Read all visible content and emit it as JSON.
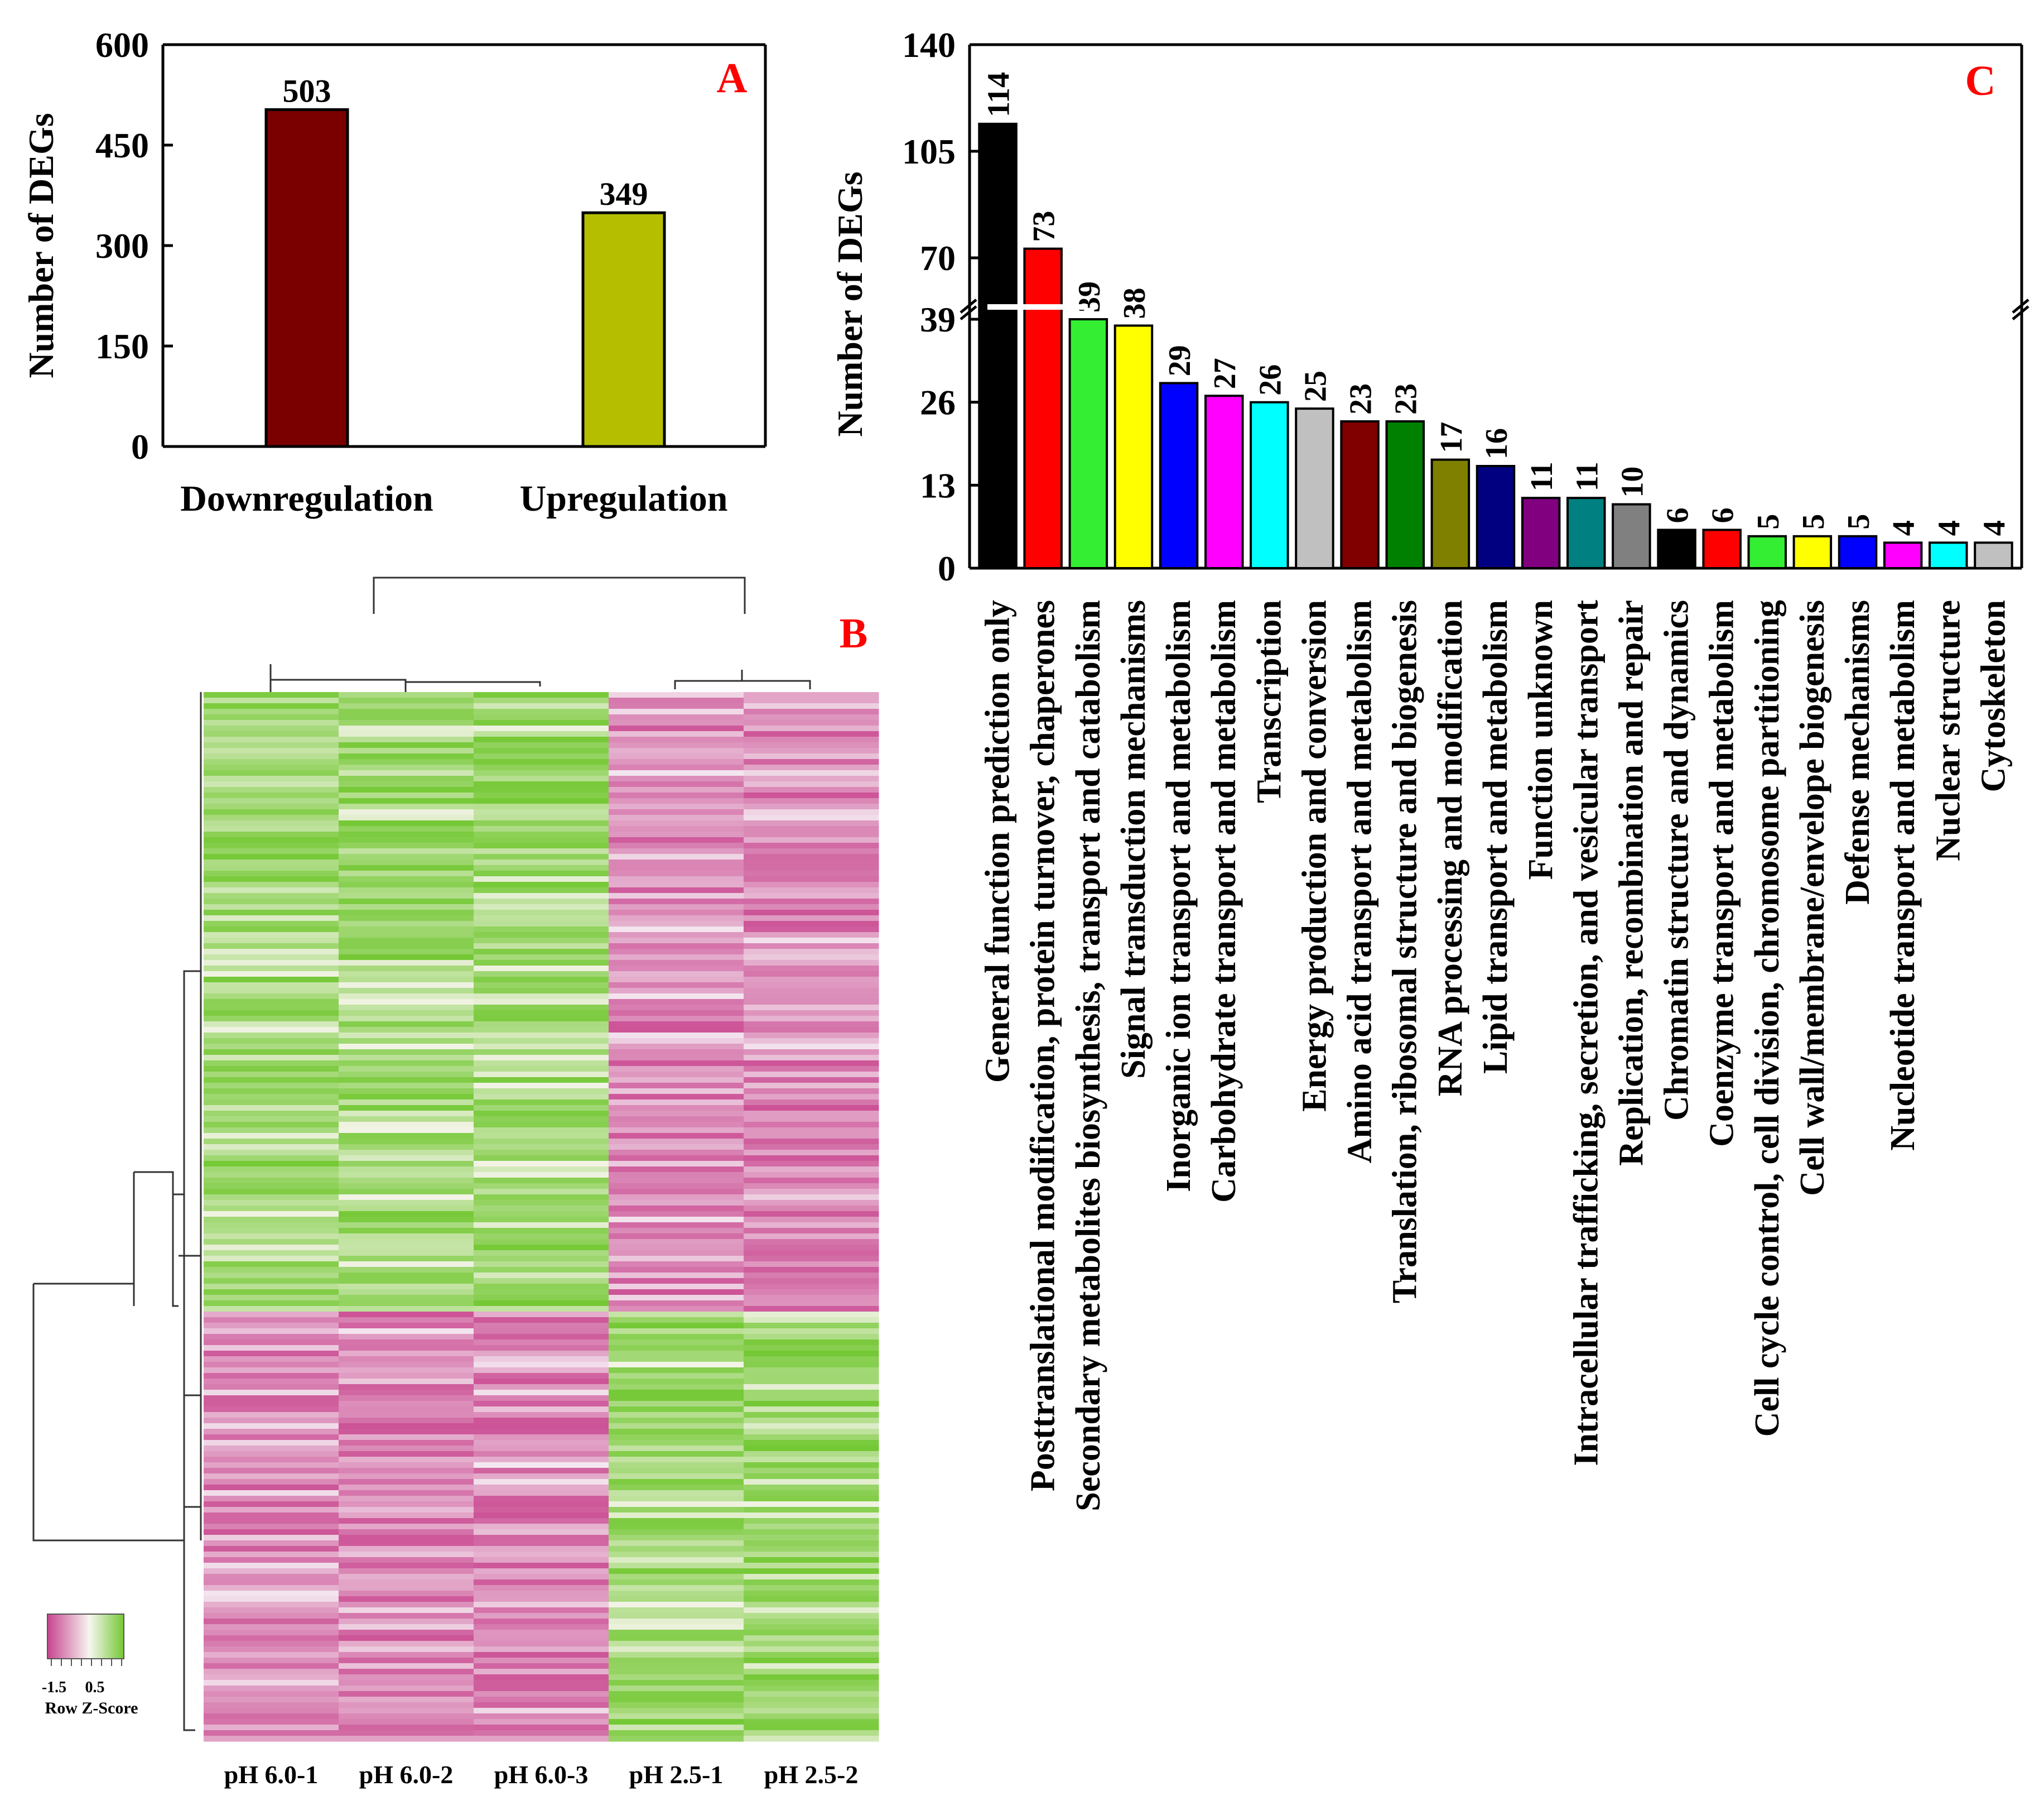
{
  "chart_data": [
    {
      "panel": "A",
      "type": "bar",
      "ylabel": "Number of DEGs",
      "ylim": [
        0,
        600
      ],
      "yticks": [
        0,
        150,
        300,
        450,
        600
      ],
      "categories": [
        "Downregulation",
        "Upregulation"
      ],
      "values": [
        503,
        349
      ],
      "data_labels": [
        "503",
        "349"
      ],
      "colors": [
        "#7a0000",
        "#b5bf00"
      ],
      "grid": false
    },
    {
      "panel": "B",
      "type": "heatmap",
      "columns": [
        "pH 6.0-1",
        "pH 6.0-2",
        "pH 6.0-3",
        "pH 2.5-1",
        "pH 2.5-2"
      ],
      "legend": {
        "title": "Row Z-Score",
        "min_label": "-1.5",
        "mid_label": "0.5",
        "low_color": "#d0589c",
        "mid_color": "#f4f4ee",
        "high_color": "#74c835"
      },
      "row_groups": [
        {
          "name": "downregulated cluster",
          "share": 0.59,
          "pH6_colors": "green",
          "pH2_colors": "magenta"
        },
        {
          "name": "upregulated cluster",
          "share": 0.41,
          "pH6_colors": "magenta",
          "pH2_colors": "green"
        }
      ]
    },
    {
      "panel": "C",
      "type": "bar",
      "ylabel": "Number of DEGs",
      "broken_axis": {
        "lower_range": [
          0,
          39
        ],
        "upper_range": [
          70,
          140
        ]
      },
      "yticks": [
        0,
        13,
        26,
        39,
        70,
        105,
        140
      ],
      "categories": [
        "General function prediction only",
        "Posttranslational modification, protein turnover, chaperones",
        "Secondary metabolites biosynthesis, transport and catabolism",
        "Signal transduction mechanisms",
        "Inorganic ion transport and metabolism",
        "Carbohydrate transport and metabolism",
        "Transcription",
        "Energy production and conversion",
        "Amino acid transport and metabolism",
        "Translation, ribosomal structure and biogenesis",
        "RNA processing and modification",
        "Lipid transport and metabolism",
        "Function unknown",
        "Intracellular trafficking, secretion, and vesicular transport",
        "Replication, recombination and repair",
        "Chromatin structure and dynamics",
        "Coenzyme transport and metabolism",
        "Cell cycle control, cell division, chromosome partitioning",
        "Cell wall/membrane/envelope biogenesis",
        "Defense mechanisms",
        "Nucleotide transport and metabolism",
        "Nuclear structure",
        "Cytoskeleton"
      ],
      "values": [
        114,
        73,
        39,
        38,
        29,
        27,
        26,
        25,
        23,
        23,
        17,
        16,
        11,
        11,
        10,
        6,
        6,
        5,
        5,
        5,
        4,
        4,
        4
      ],
      "colors": [
        "#000000",
        "#ff0000",
        "#33ee33",
        "#ffff00",
        "#0000ff",
        "#ff00ff",
        "#00ffff",
        "#c0c0c0",
        "#800000",
        "#008000",
        "#808000",
        "#000080",
        "#800080",
        "#008080",
        "#808080",
        "#000000",
        "#ff0000",
        "#33ee33",
        "#ffff00",
        "#0000ff",
        "#ff00ff",
        "#00ffff",
        "#c0c0c0"
      ],
      "grid": false
    }
  ],
  "panel_labels": {
    "a": "A",
    "b": "B",
    "c": "C"
  },
  "label_color": "#ff0000"
}
